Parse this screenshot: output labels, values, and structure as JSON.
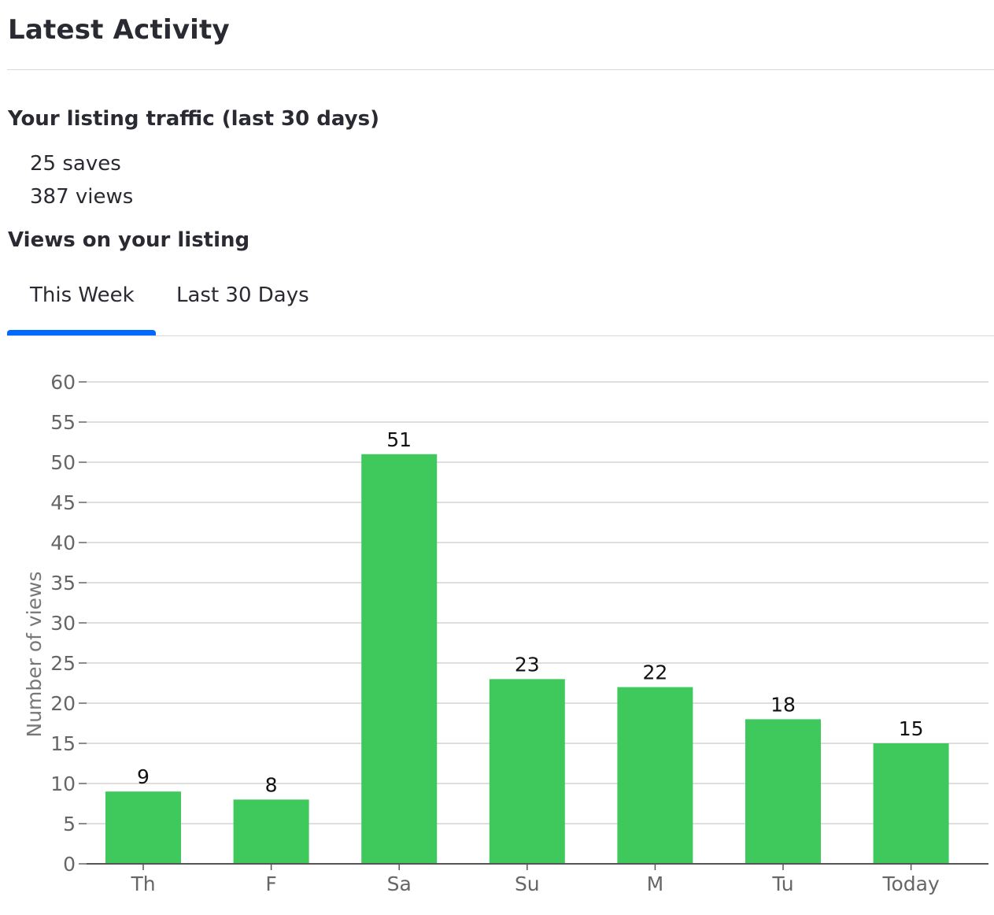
{
  "header": {
    "title": "Latest Activity"
  },
  "traffic": {
    "title": "Your listing traffic (last 30 days)",
    "saves": "25 saves",
    "views": "387 views"
  },
  "views_section": {
    "title": "Views on your listing",
    "tabs": [
      {
        "label": "This Week",
        "active": true
      },
      {
        "label": "Last 30 Days",
        "active": false
      }
    ]
  },
  "colors": {
    "accent": "#006aff",
    "bar": "#3fc95c",
    "grid": "#d3d3d3"
  },
  "chart_data": {
    "type": "bar",
    "categories": [
      "Th",
      "F",
      "Sa",
      "Su",
      "M",
      "Tu",
      "Today"
    ],
    "values": [
      9,
      8,
      51,
      23,
      22,
      18,
      15
    ],
    "value_labels": true,
    "xlabel": "",
    "ylabel": "Number of views",
    "ylim": [
      0,
      60
    ],
    "yticks": [
      0,
      5,
      10,
      15,
      20,
      25,
      30,
      35,
      40,
      45,
      50,
      55,
      60
    ],
    "grid": true,
    "legend": "none"
  }
}
